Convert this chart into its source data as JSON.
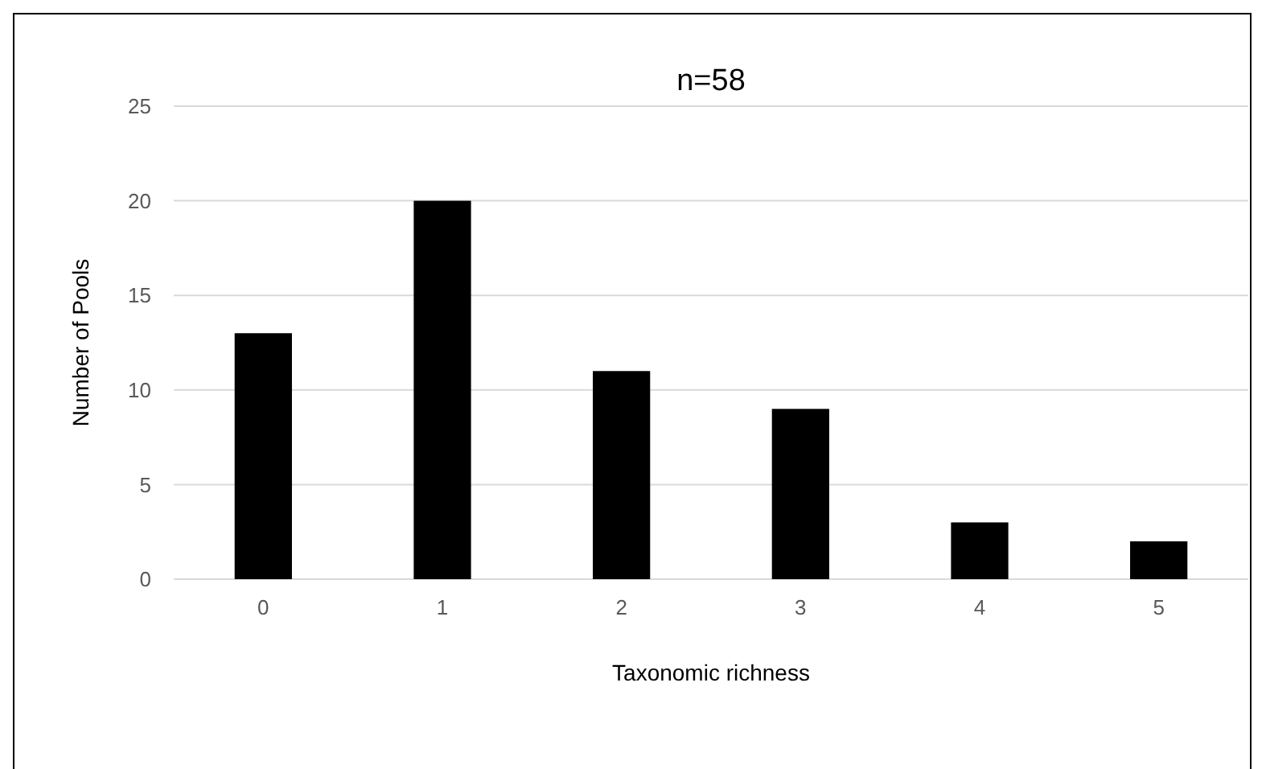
{
  "chart_data": {
    "type": "bar",
    "title": "n=58",
    "xlabel": "Taxonomic richness",
    "ylabel": "Number of Pools",
    "categories": [
      "0",
      "1",
      "2",
      "3",
      "4",
      "5"
    ],
    "values": [
      13,
      20,
      11,
      9,
      3,
      2
    ],
    "color": "#000000",
    "ylim": [
      0,
      25
    ],
    "yticks": [
      0,
      5,
      10,
      15,
      20,
      25
    ],
    "grid": "y"
  }
}
